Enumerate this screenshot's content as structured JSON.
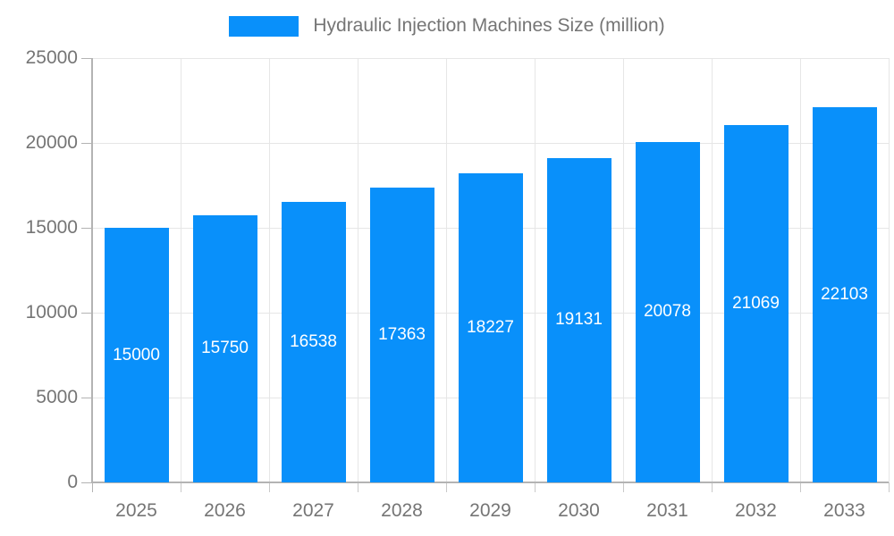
{
  "chart": {
    "legend": {
      "label": "Hydraulic Injection Machines Size (million)"
    }
  },
  "chart_data": {
    "type": "bar",
    "title": "Hydraulic Injection Machines Size (million)",
    "categories": [
      "2025",
      "2026",
      "2027",
      "2028",
      "2029",
      "2030",
      "2031",
      "2032",
      "2033"
    ],
    "series": [
      {
        "name": "Hydraulic Injection Machines Size (million)",
        "values": [
          15000,
          15750,
          16538,
          17363,
          18227,
          19131,
          20078,
          21069,
          22103
        ]
      }
    ],
    "value_labels": [
      "15000",
      "15750",
      "16538",
      "17363",
      "18227",
      "19131",
      "20078",
      "21069",
      "22103"
    ],
    "xlabel": "",
    "ylabel": "",
    "ylim": [
      0,
      25000
    ],
    "yticks": [
      0,
      5000,
      10000,
      15000,
      20000,
      25000
    ],
    "ytick_labels": [
      "0",
      "5000",
      "10000",
      "15000",
      "20000",
      "25000"
    ],
    "grid": true,
    "legend_position": "top",
    "colors": {
      "bar": "#0990fa",
      "bar_value_text": "#ffffff",
      "axis_text": "#757575",
      "axis_line": "#b3b3b3",
      "gridline": "#e6e6e6"
    }
  }
}
